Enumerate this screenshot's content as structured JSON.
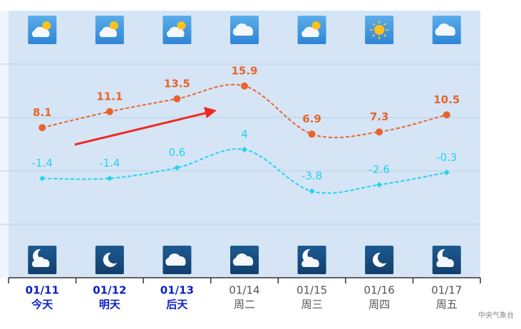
{
  "chart_data": {
    "type": "line",
    "categories": [
      "01/11",
      "01/12",
      "01/13",
      "01/14",
      "01/15",
      "01/16",
      "01/17"
    ],
    "day_labels": [
      "今天",
      "明天",
      "后天",
      "周二",
      "周三",
      "周四",
      "周五"
    ],
    "series": [
      {
        "color": "#e8642c",
        "values": [
          8.1,
          11.1,
          13.5,
          15.9,
          6.9,
          7.3,
          10.5
        ]
      },
      {
        "color": "#22d3ef",
        "values": [
          -1.4,
          -1.4,
          0.6,
          4,
          -3.8,
          -2.6,
          -0.3
        ]
      }
    ],
    "ylim": [
      -20,
      30
    ],
    "grid_lines": [
      -10,
      0,
      10,
      20
    ],
    "source": "中央气象台"
  }
}
